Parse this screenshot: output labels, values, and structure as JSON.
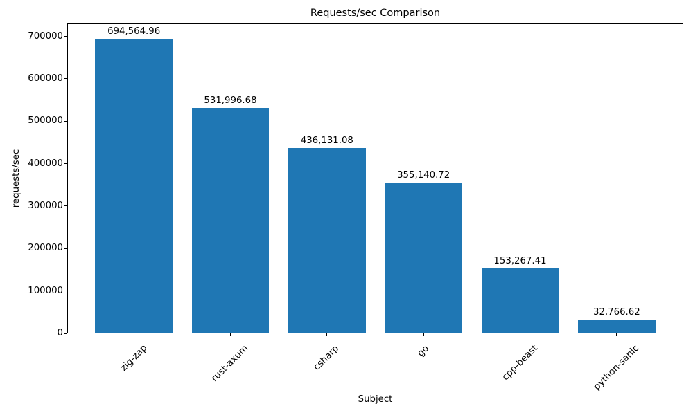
{
  "chart_data": {
    "type": "bar",
    "title": "Requests/sec Comparison",
    "xlabel": "Subject",
    "ylabel": "requests/sec",
    "categories": [
      "zig-zap",
      "rust-axum",
      "csharp",
      "go",
      "cpp-beast",
      "python-sanic"
    ],
    "values": [
      694564.96,
      531996.68,
      436131.08,
      355140.72,
      153267.41,
      32766.62
    ],
    "value_labels": [
      "694,564.96",
      "531,996.68",
      "436,131.08",
      "355,140.72",
      "153,267.41",
      "32,766.62"
    ],
    "yticks": [
      0,
      100000,
      200000,
      300000,
      400000,
      500000,
      600000,
      700000
    ],
    "ytick_labels": [
      "0",
      "100000",
      "200000",
      "300000",
      "400000",
      "500000",
      "600000",
      "700000"
    ],
    "ylim": [
      0,
      732000
    ],
    "x_tick_rotation": 45,
    "grid": false,
    "legend_position": "none",
    "bar_color": "#1f77b4",
    "text_color": "#000000",
    "background_color": "#ffffff"
  }
}
